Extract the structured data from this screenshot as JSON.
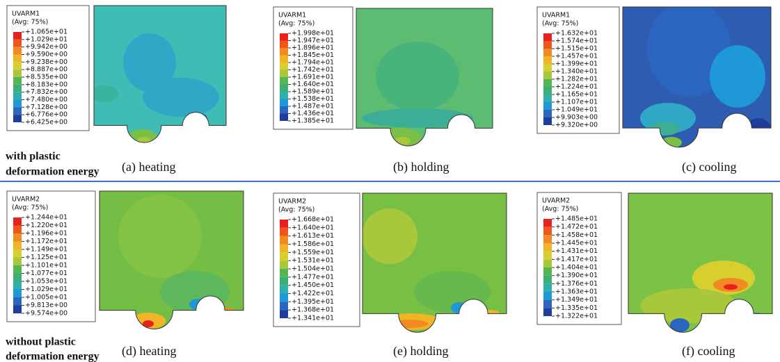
{
  "rows": [
    {
      "label_lines": [
        "with plastic",
        "deformation energy"
      ]
    },
    {
      "label_lines": [
        "without plastic",
        "deformation energy"
      ]
    }
  ],
  "panels": [
    {
      "legend_title": "UVARM1",
      "legend_subtitle": "(Avg: 75%)",
      "caption": "(a) heating",
      "legend_labels": [
        "+1.065e+01",
        "+1.029e+01",
        "+9.942e+00",
        "+9.590e+00",
        "+9.238e+00",
        "+8.887e+00",
        "+8.535e+00",
        "+8.183e+00",
        "+7.832e+00",
        "+7.480e+00",
        "+7.128e+00",
        "+6.776e+00",
        "+6.425e+00"
      ]
    },
    {
      "legend_title": "UVARM1",
      "legend_subtitle": "(Avg: 75%)",
      "caption": "(b) holding",
      "legend_labels": [
        "+1.998e+01",
        "+1.947e+01",
        "+1.896e+01",
        "+1.845e+01",
        "+1.794e+01",
        "+1.742e+01",
        "+1.691e+01",
        "+1.640e+01",
        "+1.589e+01",
        "+1.538e+01",
        "+1.487e+01",
        "+1.436e+01",
        "+1.385e+01"
      ]
    },
    {
      "legend_title": "UVARM1",
      "legend_subtitle": "(Avg: 75%)",
      "caption": "(c) cooling",
      "legend_labels": [
        "+1.632e+01",
        "+1.574e+01",
        "+1.515e+01",
        "+1.457e+01",
        "+1.399e+01",
        "+1.340e+01",
        "+1.282e+01",
        "+1.224e+01",
        "+1.165e+01",
        "+1.107e+01",
        "+1.049e+01",
        "+9.903e+00",
        "+9.320e+00"
      ]
    },
    {
      "legend_title": "UVARM2",
      "legend_subtitle": "(Avg: 75%)",
      "caption": "(d) heating",
      "legend_labels": [
        "+1.244e+01",
        "+1.220e+01",
        "+1.196e+01",
        "+1.172e+01",
        "+1.149e+01",
        "+1.125e+01",
        "+1.101e+01",
        "+1.077e+01",
        "+1.053e+01",
        "+1.029e+01",
        "+1.005e+01",
        "+9.813e+00",
        "+9.574e+00"
      ]
    },
    {
      "legend_title": "UVARM2",
      "legend_subtitle": "(Avg: 75%)",
      "caption": "(e) holding",
      "legend_labels": [
        "+1.668e+01",
        "+1.640e+01",
        "+1.613e+01",
        "+1.586e+01",
        "+1.559e+01",
        "+1.531e+01",
        "+1.504e+01",
        "+1.477e+01",
        "+1.450e+01",
        "+1.422e+01",
        "+1.395e+01",
        "+1.368e+01",
        "+1.341e+01"
      ]
    },
    {
      "legend_title": "UVARM2",
      "legend_subtitle": "(Avg: 75%)",
      "caption": "(f) cooling",
      "legend_labels": [
        "+1.485e+01",
        "+1.472e+01",
        "+1.458e+01",
        "+1.445e+01",
        "+1.431e+01",
        "+1.417e+01",
        "+1.404e+01",
        "+1.390e+01",
        "+1.376e+01",
        "+1.363e+01",
        "+1.349e+01",
        "+1.335e+01",
        "+1.322e+01"
      ]
    }
  ]
}
